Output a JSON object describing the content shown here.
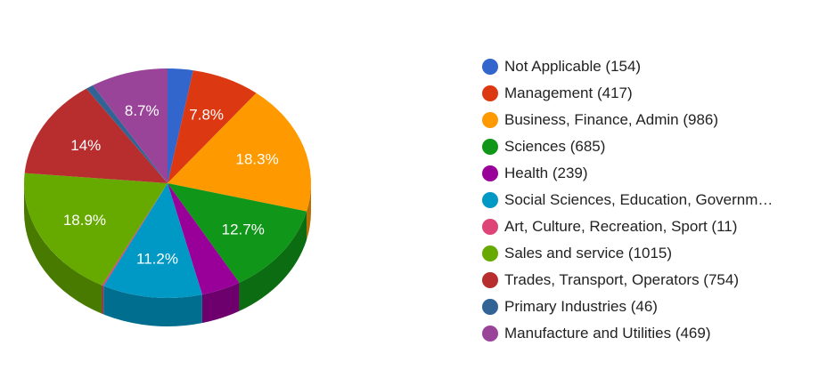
{
  "chart_data": {
    "type": "pie",
    "title": "",
    "legend_position": "right",
    "style": "3d",
    "categories": [
      "Not Applicable",
      "Management",
      "Business, Finance, Admin",
      "Sciences",
      "Health",
      "Social Sciences, Education, Government",
      "Art, Culture, Recreation, Sport",
      "Sales and service",
      "Trades, Transport, Operators",
      "Primary Industries",
      "Manufacture and Utilities"
    ],
    "values": [
      154,
      417,
      986,
      685,
      239,
      604,
      11,
      1015,
      754,
      46,
      469
    ],
    "slice_labels": [
      "",
      "7.8%",
      "18.3%",
      "12.7%",
      "",
      "11.2%",
      "",
      "18.9%",
      "14%",
      "",
      "8.7%"
    ],
    "colors": [
      "#3366cc",
      "#dc3912",
      "#ff9900",
      "#109618",
      "#990099",
      "#0099c6",
      "#dd4477",
      "#66aa00",
      "#b82e2e",
      "#316395",
      "#994499"
    ]
  },
  "legend": {
    "items": [
      {
        "label": "Not Applicable (154)",
        "color": "#3366cc"
      },
      {
        "label": "Management (417)",
        "color": "#dc3912"
      },
      {
        "label": "Business, Finance, Admin (986)",
        "color": "#ff9900"
      },
      {
        "label": "Sciences (685)",
        "color": "#109618"
      },
      {
        "label": "Health (239)",
        "color": "#990099"
      },
      {
        "label": "Social Sciences, Education, Governm…",
        "color": "#0099c6"
      },
      {
        "label": "Art, Culture, Recreation, Sport (11)",
        "color": "#dd4477"
      },
      {
        "label": "Sales and service (1015)",
        "color": "#66aa00"
      },
      {
        "label": "Trades, Transport, Operators (754)",
        "color": "#b82e2e"
      },
      {
        "label": "Primary Industries (46)",
        "color": "#316395"
      },
      {
        "label": "Manufacture and Utilities (469)",
        "color": "#994499"
      }
    ]
  }
}
